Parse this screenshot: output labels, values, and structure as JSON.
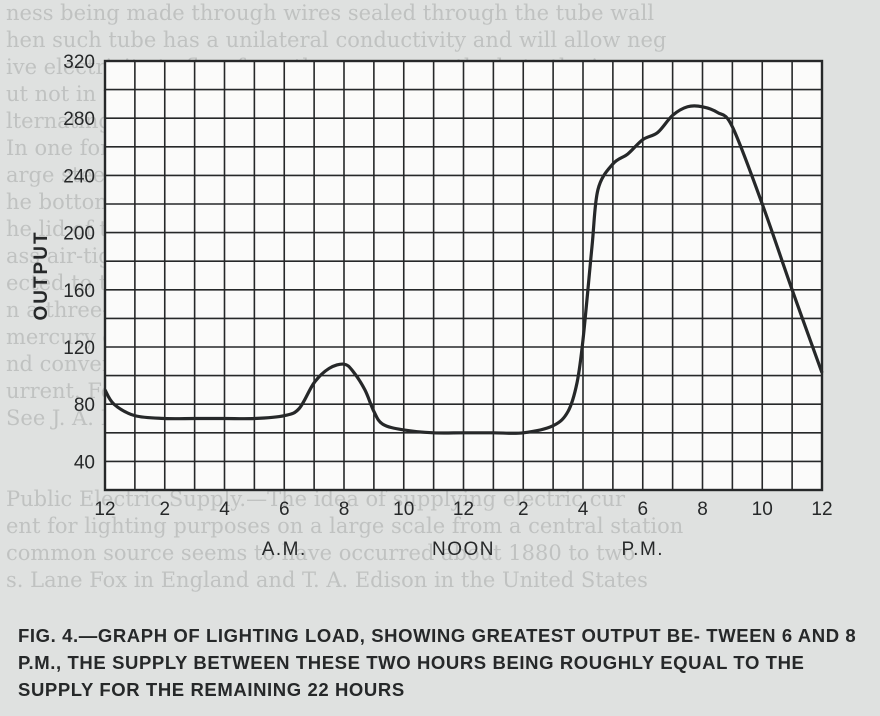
{
  "background_text": [
    "ness being made through wires sealed through the tube wall",
    "hen such tube has a unilateral conductivity and will allow neg",
    "ive electricity to flow from the mercury cathode to the iron ano",
    "ut not in the opposite direction. Hence it can rectify a",
    "lternating current.",
    "In one form used for railway working the tube consists of",
    "arge steel box in which a high vacuum is created by a pump. I",
    "he bottom is a pool of mercury which acts as the cathode.",
    "he lid of the box there are six glands through which iron rod",
    "ass air-tight and insulated electrically. These rods are con",
    "ected to the two outer ends of the terminals of the three circuit",
    "n a three-phase transformer and the central junction to th",
    "mercury cathode. The mercury rectifier then acts as a rectifie",
    "nd converts the three-phase alternating current into a direc",
    "urrent. For further details see L. Thomas' book on the subject.",
    "See J. A. Fleming, Mercury Vapour Rectifiers and Mercury Lamps.",
    "",
    "",
    "Public Electric Supply.—The idea of supplying electric cur",
    "ent for lighting purposes on a large scale from a central station",
    "common source seems to have occurred about 1880 to two",
    "s. Lane Fox in England and T. A. Edison in the United States"
  ],
  "caption": "FIG. 4.—GRAPH OF LIGHTING LOAD, SHOWING GREATEST OUTPUT BE- TWEEN 6 AND 8 P.M., THE SUPPLY BETWEEN THESE TWO HOURS BEING ROUGHLY EQUAL TO THE SUPPLY FOR THE REMAINING 22 HOURS",
  "colors": {
    "paper": "#dfe1e0",
    "ink": "#262829",
    "faint_text": "#a7aaa9"
  },
  "chart_data": {
    "type": "line",
    "ylabel": "OUTPUT",
    "ylim": [
      40,
      320
    ],
    "yticks": [
      40,
      80,
      120,
      160,
      200,
      240,
      280,
      320
    ],
    "xlim": [
      0,
      24
    ],
    "xtick_positions": [
      0,
      2,
      4,
      6,
      8,
      10,
      12,
      14,
      16,
      18,
      20,
      22,
      24
    ],
    "xtick_labels": [
      "12",
      "2",
      "4",
      "6",
      "8",
      "10",
      "12",
      "2",
      "4",
      "6",
      "8",
      "10",
      "12"
    ],
    "period_labels": [
      {
        "text": "A.M.",
        "x": 6
      },
      {
        "text": "NOON",
        "x": 12
      },
      {
        "text": "P.M.",
        "x": 18
      }
    ],
    "grid": true,
    "series": [
      {
        "x": [
          0,
          0.3,
          1,
          2,
          3,
          4,
          5,
          6,
          6.5,
          7,
          7.5,
          8,
          8.3,
          8.7,
          9,
          9.3,
          10,
          11,
          12,
          13,
          14,
          15,
          15.5,
          15.8,
          16,
          16.3,
          16.5,
          17,
          17.5,
          18,
          18.5,
          19,
          19.5,
          20,
          20.5,
          21,
          22,
          23,
          24
        ],
        "y": [
          90,
          80,
          72,
          70,
          70,
          70,
          70,
          72,
          77,
          95,
          105,
          108,
          103,
          90,
          75,
          66,
          62,
          60,
          60,
          60,
          60,
          65,
          75,
          95,
          125,
          190,
          230,
          248,
          255,
          265,
          270,
          282,
          288,
          288,
          284,
          274,
          220,
          160,
          102
        ]
      }
    ]
  }
}
